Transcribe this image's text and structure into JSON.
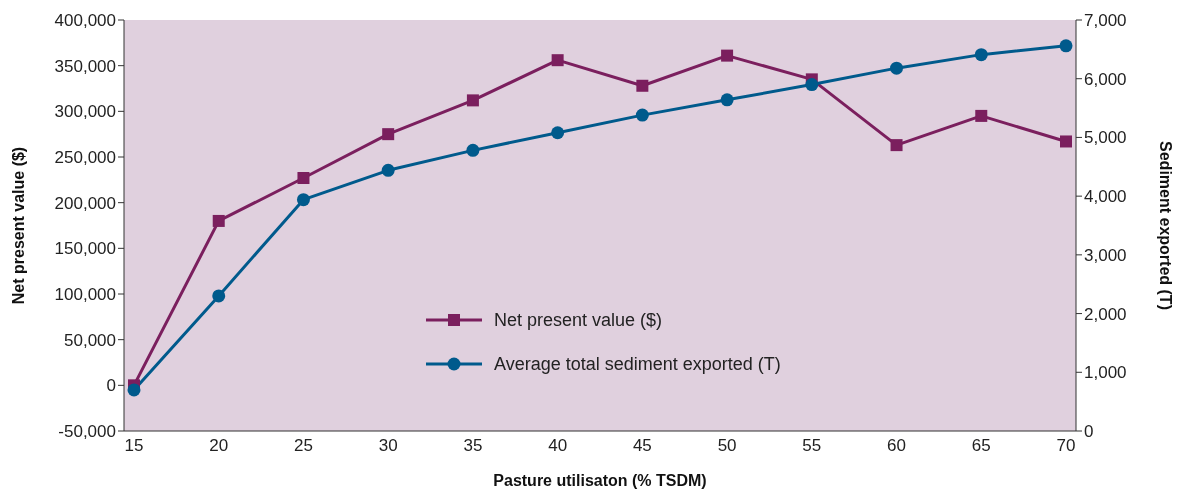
{
  "chart_data": {
    "type": "line",
    "xlabel": "Pasture utilisaton (% TSDM)",
    "ylabel": "Net present value ($)",
    "y2label": "Sediment exported (T)",
    "categories": [
      "15",
      "20",
      "25",
      "30",
      "35",
      "40",
      "45",
      "50",
      "55",
      "60",
      "65",
      "70"
    ],
    "series": [
      {
        "name": "Net present value ($)",
        "color": "#7b1f5e",
        "marker": "square",
        "values": [
          0,
          180000,
          227000,
          275000,
          312000,
          356000,
          328000,
          361000,
          335000,
          263000,
          295000,
          267000
        ]
      },
      {
        "name": "Average total sediment exported (T)",
        "color": "#005a8c",
        "marker": "circle",
        "axis": "y2",
        "values": [
          700,
          2300,
          3940,
          4440,
          4780,
          5080,
          5380,
          5640,
          5900,
          6180,
          6410,
          6560
        ]
      }
    ],
    "ylim": [
      -50000,
      400000
    ],
    "yticks": [
      {
        "value": -50000,
        "label": "-50,000"
      },
      0,
      {
        "value": 50000,
        "label": "50,000"
      },
      {
        "value": 100000,
        "label": "100,000"
      },
      {
        "value": 150000,
        "label": "150,000"
      },
      {
        "value": 200000,
        "label": "200,000"
      },
      {
        "value": 250000,
        "label": "250,000"
      },
      {
        "value": 300000,
        "label": "300,000"
      },
      {
        "value": 350000,
        "label": "350,000"
      },
      {
        "value": 400000,
        "label": "400,000"
      }
    ],
    "y2lim": [
      0,
      7000
    ],
    "y2ticks": [
      0,
      {
        "value": 1000,
        "label": "1,000"
      },
      {
        "value": 2000,
        "label": "2,000"
      },
      {
        "value": 3000,
        "label": "3,000"
      },
      {
        "value": 4000,
        "label": "4,000"
      },
      {
        "value": 5000,
        "label": "5,000"
      },
      {
        "value": 6000,
        "label": "6,000"
      },
      {
        "value": 7000,
        "label": "7,000"
      }
    ],
    "legend": "center"
  }
}
